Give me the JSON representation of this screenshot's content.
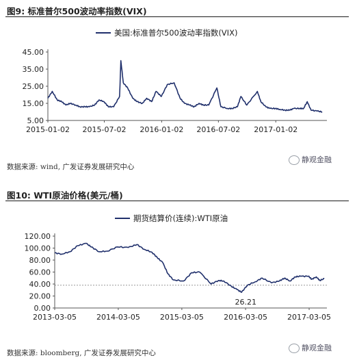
{
  "figure1": {
    "title": "图9:  标准普尔500波动率指数(VIX)",
    "source": "数据来源: wind, 广发证券发展研究中心",
    "watermark": "静观金融"
  },
  "figure2": {
    "title": "图10:  WTI原油价格(美元/桶)",
    "source": "数据来源: bloomberg, 广发证券发展研究中心",
    "watermark": "静观金融"
  },
  "colors": {
    "line": "#1f2f6b",
    "axis": "#555555",
    "dashed": "#777777"
  },
  "chart_data": [
    {
      "type": "line",
      "title": "",
      "series": [
        {
          "name": "美国:标准普尔500波动率指数(VIX)",
          "x": [
            "2015-01-02",
            "2015-01-16",
            "2015-02-01",
            "2015-02-15",
            "2015-03-01",
            "2015-03-15",
            "2015-04-01",
            "2015-04-15",
            "2015-05-01",
            "2015-05-15",
            "2015-06-01",
            "2015-06-15",
            "2015-07-01",
            "2015-07-15",
            "2015-08-01",
            "2015-08-20",
            "2015-08-24",
            "2015-09-01",
            "2015-09-15",
            "2015-10-01",
            "2015-10-15",
            "2015-11-01",
            "2015-11-15",
            "2015-12-01",
            "2015-12-15",
            "2016-01-01",
            "2016-01-20",
            "2016-02-11",
            "2016-03-01",
            "2016-03-15",
            "2016-04-01",
            "2016-04-15",
            "2016-05-01",
            "2016-05-15",
            "2016-06-01",
            "2016-06-27",
            "2016-07-10",
            "2016-08-01",
            "2016-08-15",
            "2016-09-01",
            "2016-09-12",
            "2016-10-01",
            "2016-11-04",
            "2016-11-15",
            "2016-12-01",
            "2016-12-15",
            "2017-01-01",
            "2017-01-15",
            "2017-02-01",
            "2017-02-15",
            "2017-03-01",
            "2017-03-20",
            "2017-04-01",
            "2017-04-13",
            "2017-04-25",
            "2017-05-15",
            "2017-05-31"
          ],
          "y": [
            18,
            22,
            17,
            16,
            14,
            15,
            14,
            13,
            13,
            13,
            14,
            17,
            16,
            13,
            13,
            19,
            40,
            27,
            24,
            18,
            16,
            15,
            18,
            16,
            22,
            19,
            26,
            27,
            18,
            15,
            14,
            13,
            15,
            14,
            14,
            24,
            13,
            12,
            12,
            13,
            19,
            14,
            22,
            16,
            13,
            12,
            12,
            11.5,
            11,
            11,
            12,
            12,
            12,
            16,
            11,
            10.5,
            10
          ]
        }
      ],
      "xlabel": "",
      "ylabel": "",
      "x_ticks": [
        "2015-01-02",
        "2015-07-02",
        "2016-01-02",
        "2016-07-02",
        "2017-01-02"
      ],
      "y_ticks": [
        "45.00",
        "35.00",
        "25.00",
        "15.00",
        "5.00"
      ],
      "ylim": [
        5,
        45
      ],
      "xlim": [
        "2015-01-02",
        "2017-06-15"
      ],
      "grid": false,
      "legend": "top-center"
    },
    {
      "type": "line",
      "title": "",
      "series": [
        {
          "name": "期货结算价(连续):WTI原油",
          "x": [
            "2013-03-05",
            "2013-04-15",
            "2013-06-01",
            "2013-07-15",
            "2013-09-01",
            "2013-10-01",
            "2013-11-15",
            "2014-01-01",
            "2014-03-01",
            "2014-05-01",
            "2014-06-20",
            "2014-08-01",
            "2014-09-15",
            "2014-10-15",
            "2014-11-15",
            "2014-12-15",
            "2015-01-15",
            "2015-03-15",
            "2015-05-01",
            "2015-06-15",
            "2015-08-20",
            "2015-10-01",
            "2015-11-01",
            "2015-12-15",
            "2016-01-15",
            "2016-02-11",
            "2016-03-15",
            "2016-05-01",
            "2016-06-08",
            "2016-08-01",
            "2016-09-15",
            "2016-10-15",
            "2016-11-15",
            "2016-12-15",
            "2017-01-15",
            "2017-03-01",
            "2017-03-20",
            "2017-04-15",
            "2017-05-05",
            "2017-05-31"
          ],
          "y": [
            92,
            90,
            94,
            104,
            108,
            102,
            94,
            95,
            102,
            101,
            106,
            98,
            93,
            84,
            76,
            57,
            47,
            45,
            59,
            60,
            40,
            46,
            45,
            36,
            31,
            26.21,
            38,
            44,
            50,
            42,
            45,
            50,
            45,
            52,
            53,
            53,
            48,
            52,
            46,
            49
          ]
        }
      ],
      "xlabel": "",
      "ylabel": "",
      "x_ticks": [
        "2013-03-05",
        "2014-03-05",
        "2015-03-05",
        "2016-03-05",
        "2017-03-05"
      ],
      "y_ticks": [
        "120.00",
        "100.00",
        "80.00",
        "60.00",
        "40.00",
        "20.00",
        "0.00"
      ],
      "ylim": [
        0,
        120
      ],
      "xlim": [
        "2013-03-05",
        "2017-06-15"
      ],
      "reference_line": 38,
      "annotations": [
        {
          "text": "26.21",
          "x": "2016-02-11",
          "y": 26.21
        }
      ],
      "grid": false,
      "legend": "top-center"
    }
  ]
}
